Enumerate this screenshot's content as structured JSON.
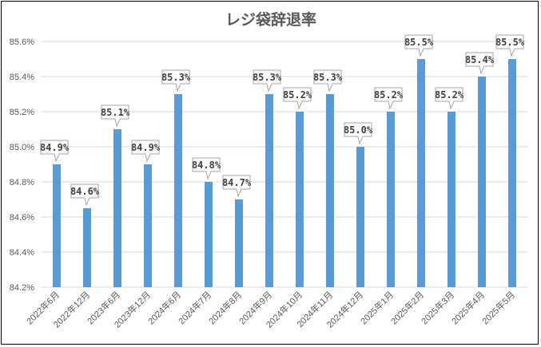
{
  "chart_data": {
    "type": "bar",
    "title": "レジ袋辞退率",
    "xlabel": "",
    "ylabel": "",
    "categories": [
      "2022年6月",
      "2022年12月",
      "2023年6月",
      "2023年12月",
      "2024年6月",
      "2024年7月",
      "2024年8月",
      "2024年9月",
      "2024年10月",
      "2024年11月",
      "2024年12月",
      "2025年1月",
      "2025年2月",
      "2025年3月",
      "2025年4月",
      "2025年5月"
    ],
    "values": [
      84.9,
      84.65,
      85.1,
      84.9,
      85.3,
      84.8,
      84.7,
      85.3,
      85.2,
      85.3,
      85.0,
      85.2,
      85.5,
      85.2,
      85.4,
      85.5
    ],
    "data_labels": [
      "84.9%",
      "84.6%",
      "85.1%",
      "84.9%",
      "85.3%",
      "84.8%",
      "84.7%",
      "85.3%",
      "85.2%",
      "85.3%",
      "85.0%",
      "85.2%",
      "85.5%",
      "85.2%",
      "85.4%",
      "85.5%"
    ],
    "ylim": [
      84.2,
      85.6
    ],
    "yticks": [
      84.2,
      84.4,
      84.6,
      84.8,
      85.0,
      85.2,
      85.4,
      85.6
    ],
    "ytick_labels": [
      "84.2%",
      "84.4%",
      "84.6%",
      "84.8%",
      "85.0%",
      "85.2%",
      "85.4%",
      "85.6%"
    ],
    "grid": true,
    "legend": "none",
    "colors": {
      "bar": "#5b9bd5",
      "grid": "#d9d9d9",
      "text": "#595959",
      "border": "#000000"
    }
  }
}
